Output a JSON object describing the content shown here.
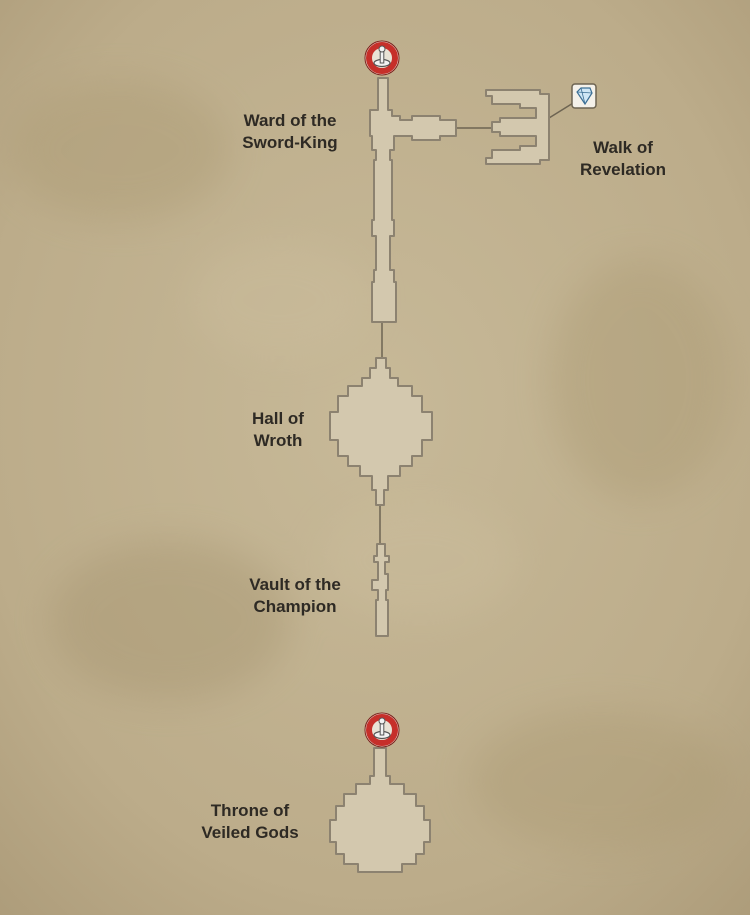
{
  "map": {
    "areas": [
      {
        "id": "ward",
        "line1": "Ward of the",
        "line2": "Sword-King"
      },
      {
        "id": "walk",
        "line1": "Walk of",
        "line2": "Revelation"
      },
      {
        "id": "hall",
        "line1": "Hall of",
        "line2": "Wroth"
      },
      {
        "id": "vault",
        "line1": "Vault of the",
        "line2": "Champion"
      },
      {
        "id": "throne",
        "line1": "Throne of",
        "line2": "Veiled Gods"
      }
    ],
    "markers": [
      {
        "type": "save-point-icon",
        "count": 2
      },
      {
        "type": "crystal-icon",
        "count": 1
      }
    ],
    "colors": {
      "parchment": "#c2b393",
      "parchment_dark": "#b0a07e",
      "floor_fill": "#d3c8ae",
      "floor_outline": "#8c8270",
      "label_text": "#2e2a24",
      "marker_red": "#c62f2a"
    }
  }
}
